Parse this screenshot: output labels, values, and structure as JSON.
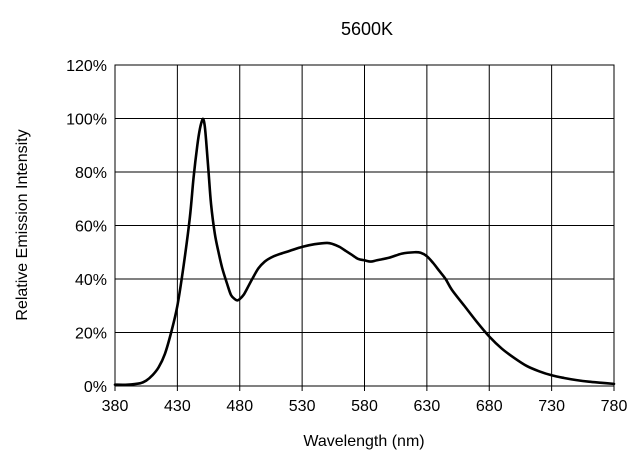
{
  "chart_data": {
    "type": "line",
    "title": "5600K",
    "xlabel": "Wavelength (nm)",
    "ylabel": "Relative Emission Intensity",
    "xlim": [
      380,
      780
    ],
    "ylim": [
      0,
      120
    ],
    "x_ticks": [
      380,
      430,
      480,
      530,
      580,
      630,
      680,
      730,
      780
    ],
    "x_tick_labels": [
      "380",
      "430",
      "480",
      "530",
      "580",
      "630",
      "680",
      "730",
      "780"
    ],
    "y_ticks": [
      0,
      20,
      40,
      60,
      80,
      100,
      120
    ],
    "y_tick_labels": [
      "0%",
      "20%",
      "40%",
      "60%",
      "80%",
      "100%",
      "120%"
    ],
    "grid": true,
    "line_color": "#000000",
    "series": [
      {
        "x": [
          380,
          390,
          400,
          405,
          410,
          415,
          420,
          425,
          430,
          435,
          440,
          443,
          446,
          448,
          450,
          451,
          452,
          453,
          455,
          457,
          460,
          463,
          466,
          470,
          473,
          476,
          478,
          480,
          483,
          486,
          490,
          495,
          500,
          505,
          510,
          520,
          530,
          540,
          550,
          555,
          560,
          565,
          570,
          575,
          580,
          585,
          590,
          600,
          610,
          620,
          625,
          630,
          635,
          640,
          645,
          650,
          660,
          670,
          680,
          690,
          700,
          710,
          720,
          730,
          740,
          750,
          760,
          770,
          780
        ],
        "y": [
          0.5,
          0.5,
          1,
          2,
          4,
          7,
          12,
          20,
          30,
          45,
          63,
          78,
          90,
          96,
          99.5,
          99.5,
          97,
          92,
          80,
          68,
          57,
          50,
          44,
          38,
          34,
          32.5,
          32,
          32.5,
          34,
          36.5,
          40,
          44,
          46.5,
          48,
          49,
          50.5,
          52,
          53,
          53.5,
          53,
          52,
          50.5,
          49,
          47.5,
          47,
          46.5,
          47,
          48,
          49.5,
          50,
          49.8,
          48.5,
          46,
          43,
          40,
          36,
          30,
          24,
          18.5,
          14,
          10.5,
          7.5,
          5.5,
          4,
          3,
          2.2,
          1.6,
          1.2,
          0.8
        ]
      }
    ]
  }
}
